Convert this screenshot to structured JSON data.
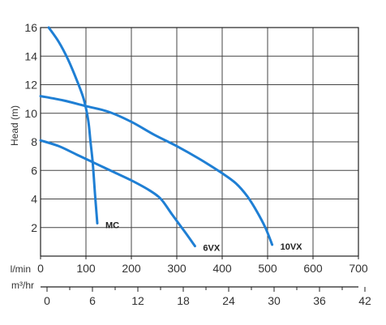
{
  "chart_data": {
    "type": "line",
    "ylabel": "Head (m)",
    "ylim": [
      0,
      16
    ],
    "yticks": [
      2,
      4,
      6,
      8,
      10,
      12,
      14,
      16
    ],
    "xlim": [
      0,
      700
    ],
    "xticks": [
      0,
      100,
      200,
      300,
      400,
      500,
      600,
      700
    ],
    "x_unit": "l/min",
    "x2_unit": "m³/hr",
    "x2ticks": [
      0,
      6,
      12,
      18,
      24,
      30,
      36,
      42
    ],
    "grid": true,
    "colors": {
      "series": "#1f7fd4",
      "grid": "#444444",
      "axis": "#222222"
    },
    "series": [
      {
        "name": "MC",
        "x": [
          18,
          40,
          60,
          80,
          95,
          105,
          110,
          115,
          120,
          125
        ],
        "y": [
          16,
          15,
          13.8,
          12.3,
          11,
          9.5,
          8,
          6.5,
          4.3,
          2.3
        ]
      },
      {
        "name": "6VX",
        "x": [
          0,
          40,
          80,
          120,
          160,
          200,
          240,
          265,
          290,
          320,
          340
        ],
        "y": [
          8.1,
          7.7,
          7.1,
          6.5,
          5.9,
          5.3,
          4.6,
          4.0,
          2.9,
          1.6,
          0.7
        ]
      },
      {
        "name": "10VX",
        "x": [
          0,
          50,
          100,
          150,
          200,
          250,
          300,
          350,
          400,
          430,
          455,
          475,
          495,
          510
        ],
        "y": [
          11.2,
          10.9,
          10.5,
          10.1,
          9.4,
          8.5,
          7.7,
          6.8,
          5.8,
          5.1,
          4.2,
          3.2,
          2.0,
          0.8
        ]
      }
    ]
  }
}
